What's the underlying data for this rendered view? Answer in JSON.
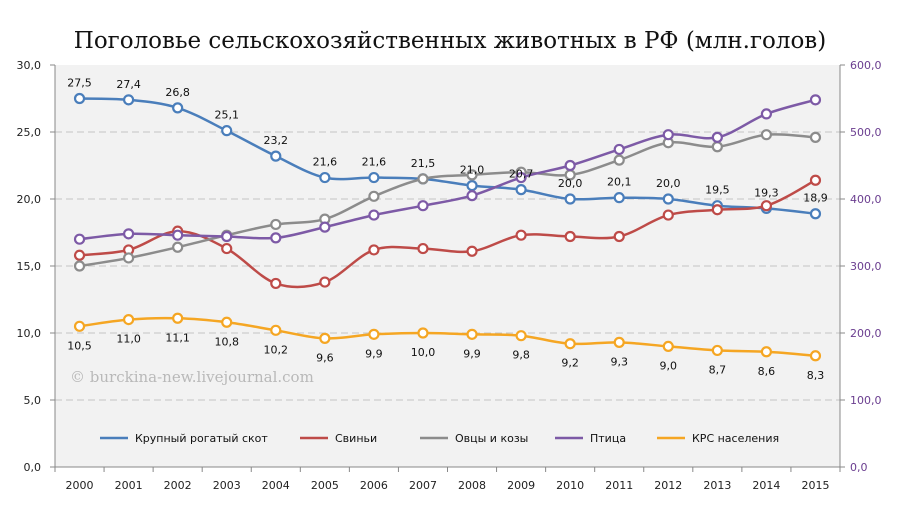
{
  "chart_data": {
    "type": "line",
    "title": "Поголовье сельскохозяйственных животных в РФ (млн.голов)",
    "categories": [
      "2000",
      "2001",
      "2002",
      "2003",
      "2004",
      "2005",
      "2006",
      "2007",
      "2008",
      "2009",
      "2010",
      "2011",
      "2012",
      "2013",
      "2014",
      "2015"
    ],
    "ylim_left": [
      0,
      30
    ],
    "ylim_right": [
      0,
      600
    ],
    "left_ticks": [
      "0,0",
      "5,0",
      "10,0",
      "15,0",
      "20,0",
      "25,0",
      "30,0"
    ],
    "right_ticks": [
      "0,0",
      "100,0",
      "200,0",
      "300,0",
      "400,0",
      "500,0",
      "600,0"
    ],
    "grid": true,
    "legend_position": "bottom",
    "watermark": "© burckina-new.livejournal.com",
    "series": [
      {
        "name": "Крупный рогатый скот",
        "color": "#4a7ebb",
        "axis": "left",
        "values": [
          27.5,
          27.4,
          26.8,
          25.1,
          23.2,
          21.6,
          21.6,
          21.5,
          21.0,
          20.7,
          20.0,
          20.1,
          20.0,
          19.5,
          19.3,
          18.9
        ],
        "labels": [
          "27,5",
          "27,4",
          "26,8",
          "25,1",
          "23,2",
          "21,6",
          "21,6",
          "21,5",
          "21,0",
          "20,7",
          "20,0",
          "20,1",
          "20,0",
          "19,5",
          "19,3",
          "18,9"
        ]
      },
      {
        "name": "Свиньи",
        "color": "#be4b48",
        "axis": "left",
        "values": [
          15.8,
          16.2,
          17.6,
          16.3,
          13.7,
          13.8,
          16.2,
          16.3,
          16.1,
          17.3,
          17.2,
          17.2,
          18.8,
          19.2,
          19.5,
          21.4
        ]
      },
      {
        "name": "Овцы и козы",
        "color": "#8c8c8c",
        "axis": "left",
        "values": [
          15.0,
          15.6,
          16.4,
          17.3,
          18.1,
          18.5,
          20.2,
          21.5,
          21.8,
          22.0,
          21.8,
          22.9,
          24.2,
          23.9,
          24.8,
          24.6
        ]
      },
      {
        "name": "Птица",
        "color": "#7d5aa6",
        "axis": "right",
        "values": [
          340,
          348,
          346,
          344,
          342,
          358,
          376,
          390,
          405,
          432,
          450,
          474,
          496,
          492,
          527,
          548
        ]
      },
      {
        "name": "КРС населения",
        "color": "#f5a623",
        "axis": "left",
        "values": [
          10.5,
          11.0,
          11.1,
          10.8,
          10.2,
          9.6,
          9.9,
          10.0,
          9.9,
          9.8,
          9.2,
          9.3,
          9.0,
          8.7,
          8.6,
          8.3
        ],
        "labels": [
          "10,5",
          "11,0",
          "11,1",
          "10,8",
          "10,2",
          "9,6",
          "9,9",
          "10,0",
          "9,9",
          "9,8",
          "9,2",
          "9,3",
          "9,0",
          "8,7",
          "8,6",
          "8,3"
        ]
      }
    ]
  }
}
